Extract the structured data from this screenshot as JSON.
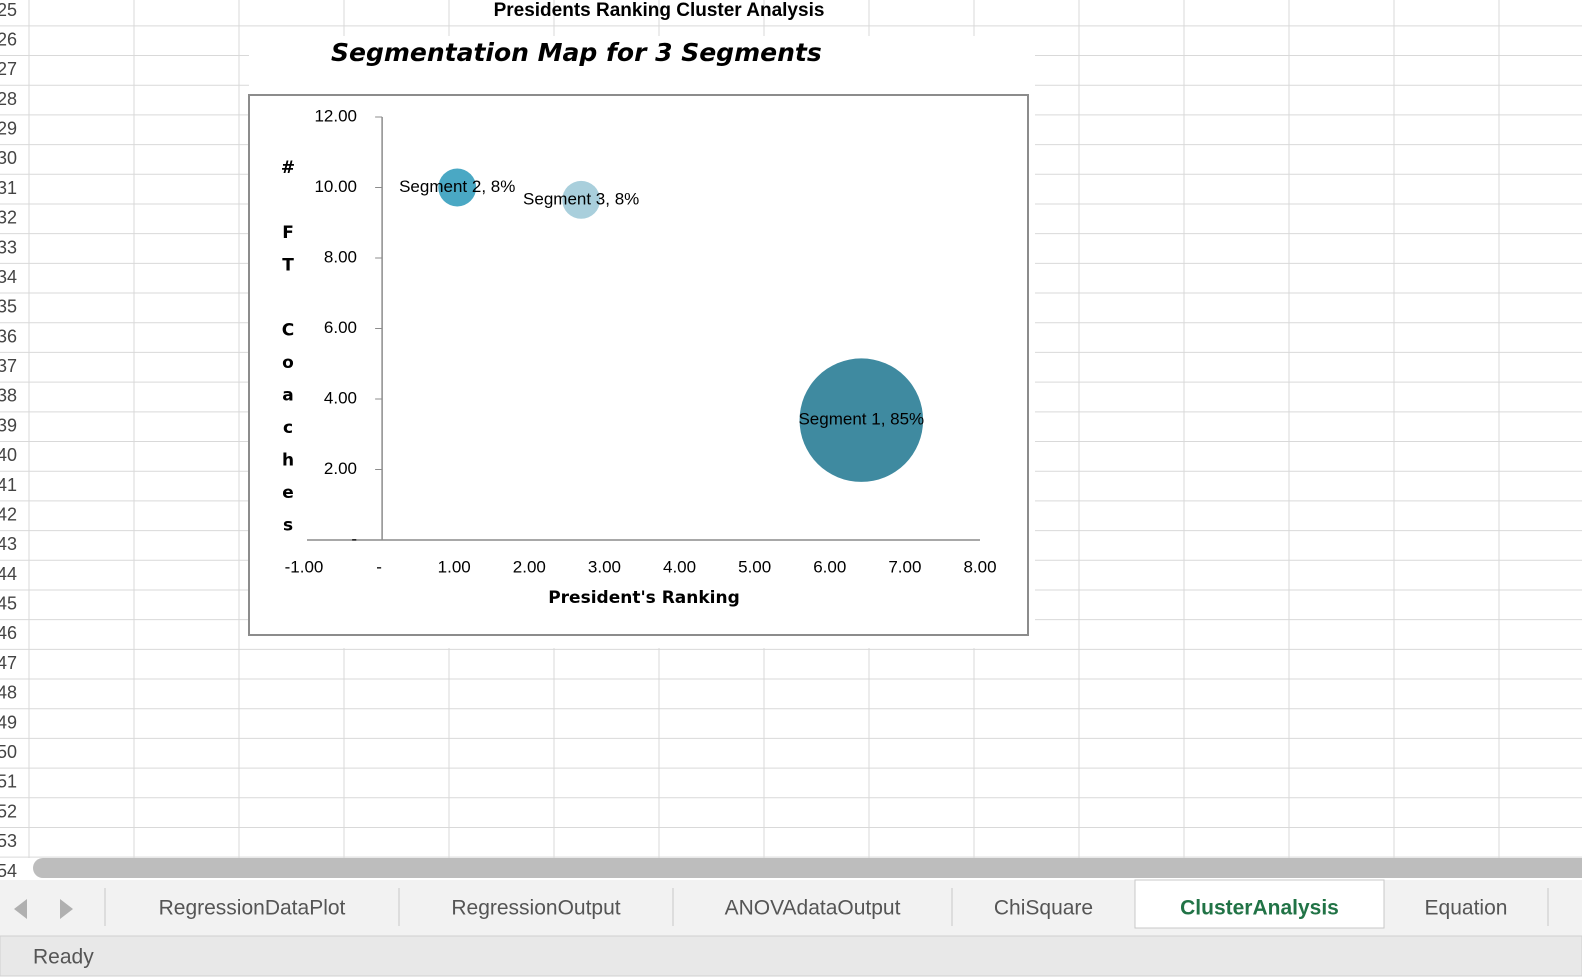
{
  "sheet": {
    "banner": "Presidents Ranking Cluster Analysis",
    "row_numbers": [
      25,
      26,
      27,
      28,
      29,
      30,
      31,
      32,
      33,
      34,
      35,
      36,
      37,
      38,
      39,
      40,
      41,
      42,
      43,
      44,
      45,
      46,
      47,
      48,
      49,
      50,
      51,
      52,
      53,
      54
    ],
    "tabs": [
      "RegressionDataPlot",
      "RegressionOutput",
      "ANOVAdataOutput",
      "ChiSquare",
      "ClusterAnalysis",
      "Equation"
    ],
    "active_tab": 4,
    "status": "Ready"
  },
  "chart_data": {
    "type": "bubble",
    "title": "Segmentation Map for 3 Segments",
    "x_label": "President's Ranking",
    "y_label": "# FT Coaches",
    "xlim": [
      -1,
      8
    ],
    "xticks": [
      {
        "value": -1,
        "label": "-1.00"
      },
      {
        "value": 0,
        "label": "-"
      },
      {
        "value": 1,
        "label": "1.00"
      },
      {
        "value": 2,
        "label": "2.00"
      },
      {
        "value": 3,
        "label": "3.00"
      },
      {
        "value": 4,
        "label": "4.00"
      },
      {
        "value": 5,
        "label": "5.00"
      },
      {
        "value": 6,
        "label": "6.00"
      },
      {
        "value": 7,
        "label": "7.00"
      },
      {
        "value": 8,
        "label": "8.00"
      }
    ],
    "ylim": [
      0,
      12
    ],
    "yticks": [
      {
        "value": 0,
        "label": "-"
      },
      {
        "value": 2,
        "label": "2.00"
      },
      {
        "value": 4,
        "label": "4.00"
      },
      {
        "value": 6,
        "label": "6.00"
      },
      {
        "value": 8,
        "label": "8.00"
      },
      {
        "value": 10,
        "label": "10.00"
      },
      {
        "value": 12,
        "label": "12.00"
      }
    ],
    "series": [
      {
        "name": "Segment 1",
        "color": "#3f8aa0",
        "x": [
          6.42
        ],
        "values": [
          3.4
        ],
        "sizes": [
          85
        ],
        "size_labels": [
          "Segment 1, 85%"
        ]
      },
      {
        "name": "Segment 2",
        "color": "#4aa8c4",
        "x": [
          1.04
        ],
        "values": [
          10.0
        ],
        "sizes": [
          8
        ],
        "size_labels": [
          "Segment 2, 8%"
        ]
      },
      {
        "name": "Segment 3",
        "color": "#a9cfdc",
        "x": [
          2.69
        ],
        "values": [
          9.65
        ],
        "sizes": [
          8
        ],
        "size_labels": [
          "Segment 3, 8%"
        ]
      }
    ]
  }
}
